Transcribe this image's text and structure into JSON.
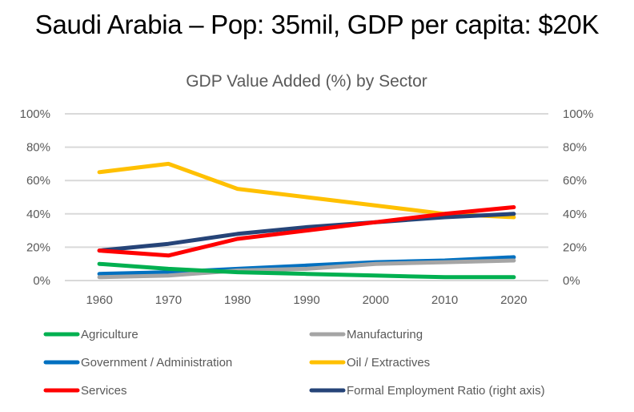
{
  "slide": {
    "title": "Saudi Arabia – Pop: 35mil, GDP per capita:  $20K"
  },
  "chart_data": {
    "type": "line",
    "title": "GDP Value Added (%) by Sector",
    "xlabel": "",
    "ylabel": "",
    "categories": [
      "1960",
      "1970",
      "1980",
      "1990",
      "2000",
      "2010",
      "2020"
    ],
    "ylim": [
      0,
      100
    ],
    "y2lim": [
      0,
      100
    ],
    "yticks": [
      "0%",
      "20%",
      "40%",
      "60%",
      "80%",
      "100%"
    ],
    "y2ticks": [
      "0%",
      "20%",
      "40%",
      "60%",
      "80%",
      "100%"
    ],
    "grid": true,
    "legend_position": "bottom",
    "series": [
      {
        "name": "Agriculture",
        "color": "#00B050",
        "axis": "left",
        "values": [
          10,
          7,
          5,
          4,
          3,
          2,
          2
        ]
      },
      {
        "name": "Manufacturing",
        "color": "#A5A5A5",
        "axis": "left",
        "values": [
          2,
          3,
          6,
          7,
          10,
          11,
          12
        ]
      },
      {
        "name": "Government / Administration",
        "color": "#0070C0",
        "axis": "left",
        "values": [
          4,
          5,
          7,
          9,
          11,
          12,
          14
        ]
      },
      {
        "name": "Oil / Extractives",
        "color": "#FFC000",
        "axis": "left",
        "values": [
          65,
          70,
          55,
          50,
          45,
          40,
          38
        ]
      },
      {
        "name": "Services",
        "color": "#FF0000",
        "axis": "left",
        "values": [
          18,
          15,
          25,
          30,
          35,
          40,
          44
        ]
      },
      {
        "name": "Formal Employment Ratio (right axis)",
        "color": "#264478",
        "axis": "right",
        "values": [
          18,
          22,
          28,
          32,
          35,
          38,
          40
        ]
      }
    ]
  }
}
